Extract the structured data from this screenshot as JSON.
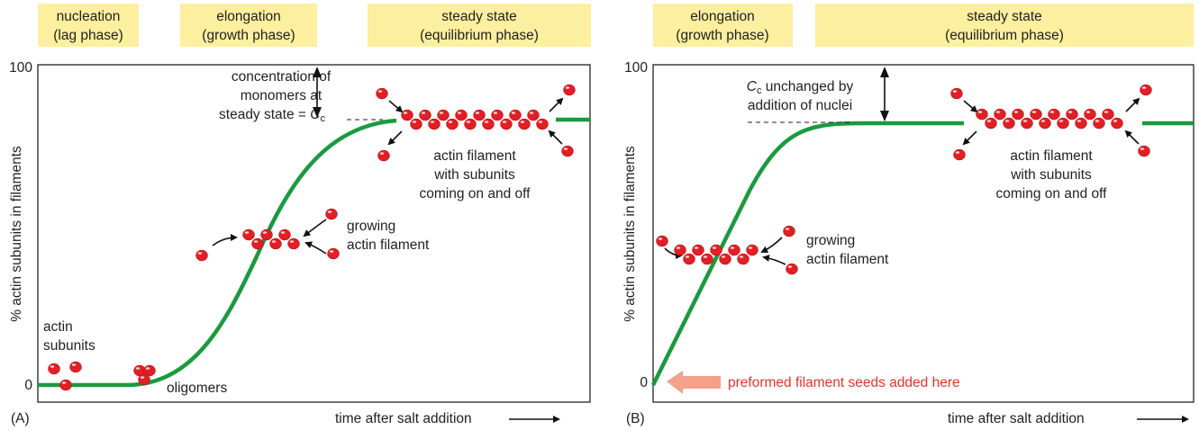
{
  "panel_a": {
    "label": "(A)",
    "phases": [
      [
        "nucleation",
        "(lag phase)"
      ],
      [
        "elongation",
        "(growth phase)"
      ],
      [
        "steady state",
        "(equilibrium phase)"
      ]
    ],
    "y_axis_title": "% actin subunits in filaments",
    "y_top": "100",
    "y_bottom": "0",
    "x_axis_title": "time after salt addition",
    "cc_note": [
      "concentration of",
      "monomers at",
      "steady state = "
    ],
    "cc_symbol": "C",
    "cc_subscript": "c",
    "subunits": [
      "actin",
      "subunits"
    ],
    "oligomers": "oligomers",
    "growing": [
      "growing",
      "actin filament"
    ],
    "steady": [
      "actin filament",
      "with subunits",
      "coming on and off"
    ]
  },
  "panel_b": {
    "label": "(B)",
    "phases": [
      [
        "elongation",
        "(growth phase)"
      ],
      [
        "steady state",
        "(equilibrium phase)"
      ]
    ],
    "y_axis_title": "% actin subunits in filaments",
    "y_top": "100",
    "y_bottom": "0",
    "x_axis_title": "time after salt addition",
    "cc_symbol": "C",
    "cc_subscript": "c",
    "cc_note": [
      " unchanged by",
      "addition of nuclei"
    ],
    "growing": [
      "growing",
      "actin filament"
    ],
    "steady": [
      "actin filament",
      "with subunits",
      "coming on and off"
    ],
    "seeds": "preformed filament seeds added here"
  }
}
